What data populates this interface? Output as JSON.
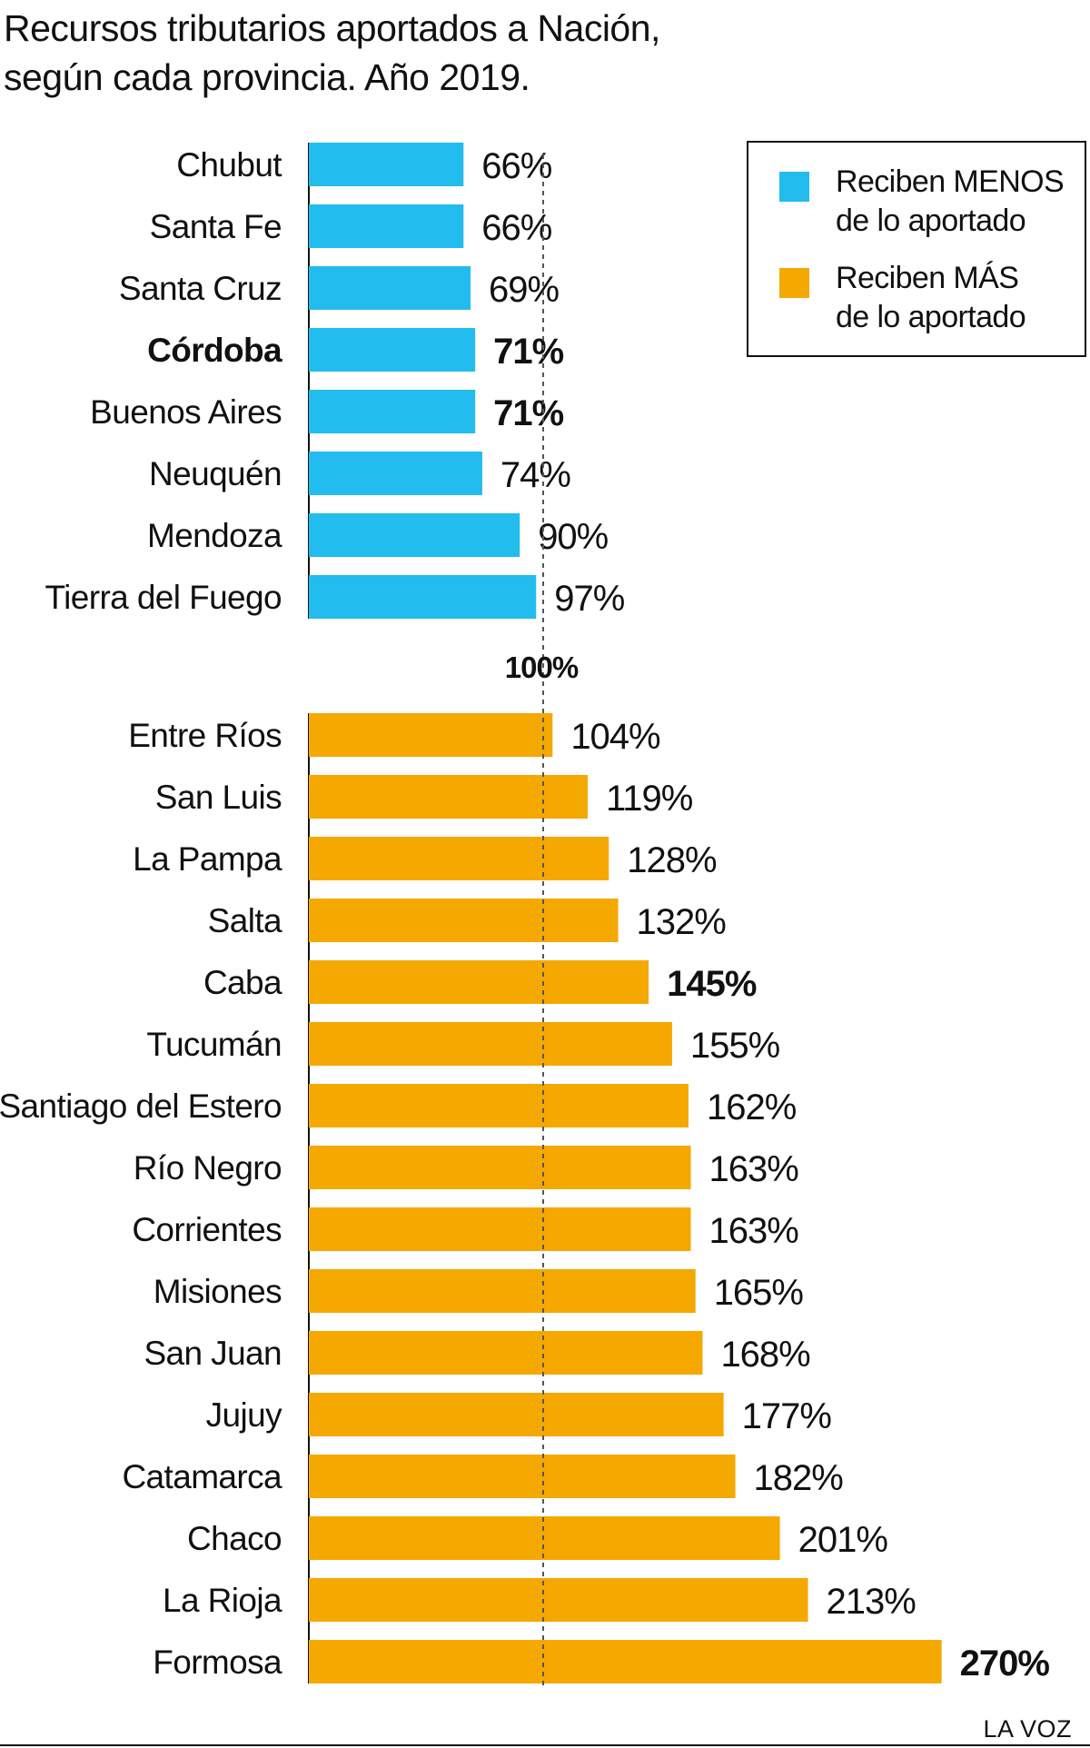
{
  "title": {
    "line1": "Recursos tributarios aportados a Nación,",
    "line2": "según cada provincia. Año 2019."
  },
  "legend": {
    "less": {
      "line1": "Reciben MENOS",
      "line2": "de lo aportado",
      "color": "#22bcee"
    },
    "more": {
      "line1": "Reciben MÁS",
      "line2": "de lo aportado",
      "color": "#f5a800"
    }
  },
  "source": "LA VOZ",
  "chart_data": {
    "type": "bar",
    "orientation": "horizontal",
    "title": "Recursos tributarios aportados a Nación, según cada provincia. Año 2019.",
    "reference_line": {
      "value": 100,
      "label": "100%"
    },
    "unit": "%",
    "groups": [
      {
        "legend": "Reciben MENOS de lo aportado",
        "color": "#22bcee",
        "categories": [
          "Chubut",
          "Santa Fe",
          "Santa Cruz",
          "Córdoba",
          "Buenos Aires",
          "Neuquén",
          "Mendoza",
          "Tierra del Fuego"
        ],
        "values": [
          66,
          66,
          69,
          71,
          71,
          74,
          90,
          97
        ],
        "labels": [
          "66%",
          "66%",
          "69%",
          "71%",
          "71%",
          "74%",
          "90%",
          "97%"
        ],
        "bold_category": [
          "Córdoba"
        ],
        "bold_value": [
          "71%"
        ]
      },
      {
        "legend": "Reciben MÁS de lo aportado",
        "color": "#f5a800",
        "categories": [
          "Entre Ríos",
          "San Luis",
          "La Pampa",
          "Salta",
          "Caba",
          "Tucumán",
          "Santiago del Estero",
          "Río Negro",
          "Corrientes",
          "Misiones",
          "San Juan",
          "Jujuy",
          "Catamarca",
          "Chaco",
          "La Rioja",
          "Formosa"
        ],
        "values": [
          104,
          119,
          128,
          132,
          145,
          155,
          162,
          163,
          163,
          165,
          168,
          177,
          182,
          201,
          213,
          270
        ],
        "labels": [
          "104%",
          "119%",
          "128%",
          "132%",
          "145%",
          "155%",
          "162%",
          "163%",
          "163%",
          "165%",
          "168%",
          "177%",
          "182%",
          "201%",
          "213%",
          "270%"
        ],
        "bold_category": [],
        "bold_value": [
          "145%",
          "270%"
        ]
      }
    ],
    "bold_rows": {
      "Buenos Aires": true,
      "Caba": true,
      "Formosa": true
    }
  }
}
